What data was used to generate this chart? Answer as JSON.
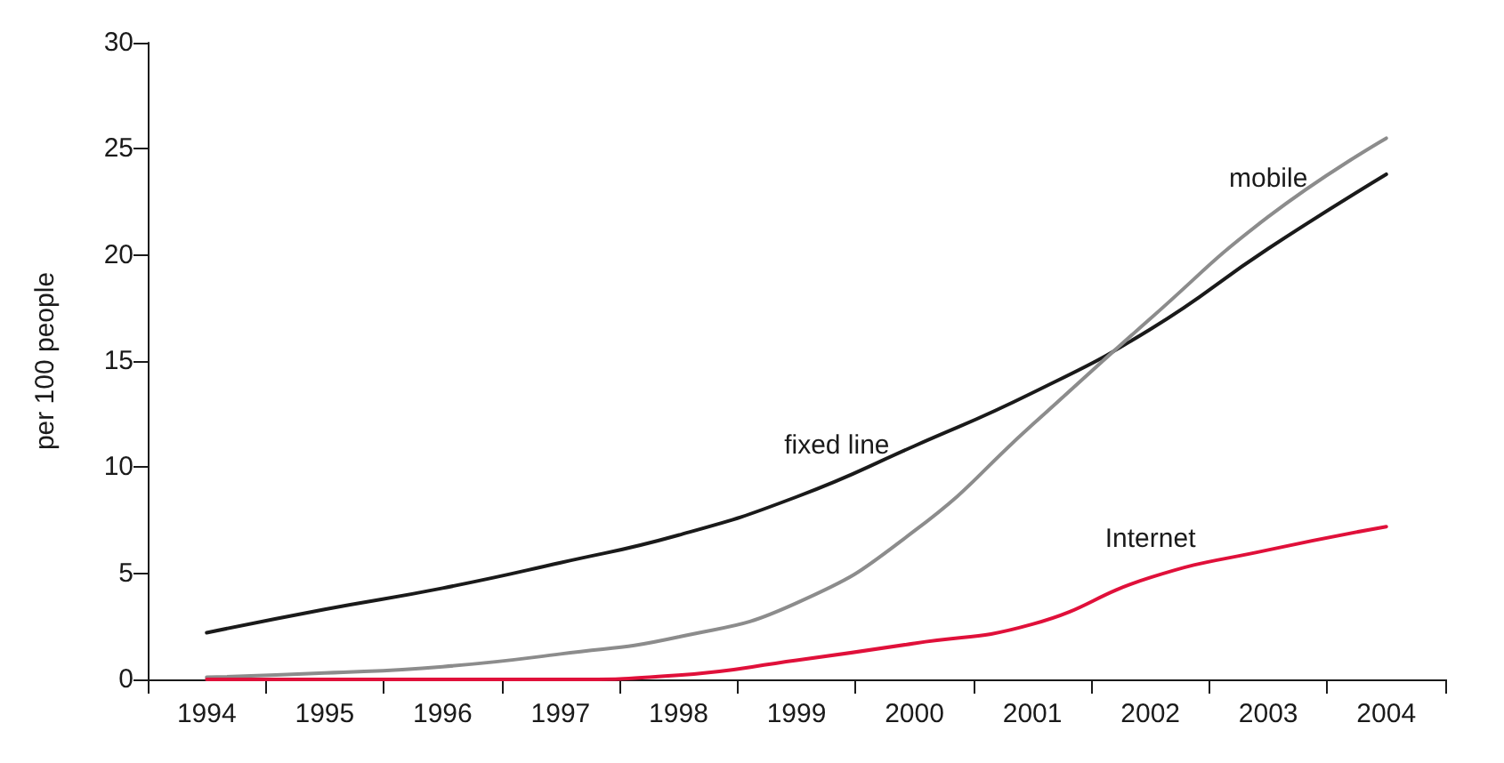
{
  "chart_data": {
    "type": "line",
    "ylabel": "per 100 people",
    "categories": [
      "1994",
      "1995",
      "1996",
      "1997",
      "1998",
      "1999",
      "2000",
      "2001",
      "2002",
      "2003",
      "2004"
    ],
    "series": [
      {
        "name": "fixed line",
        "color": "#1a1a1a",
        "values": [
          2.2,
          3.3,
          4.3,
          5.5,
          6.8,
          8.6,
          11.0,
          13.5,
          16.5,
          20.3,
          23.8
        ]
      },
      {
        "name": "mobile",
        "color": "#8c8c8c",
        "values": [
          0.1,
          0.3,
          0.6,
          1.2,
          2.0,
          3.6,
          7.0,
          12.0,
          17.0,
          21.8,
          25.5
        ]
      },
      {
        "name": "Internet",
        "color": "#e0103a",
        "values": [
          0,
          0,
          0,
          0,
          0.2,
          0.9,
          1.7,
          2.6,
          4.8,
          6.1,
          7.2
        ]
      }
    ],
    "ylim": [
      0,
      30
    ],
    "yticks": [
      0,
      5,
      10,
      15,
      20,
      25,
      30
    ],
    "grid": false,
    "legend": false,
    "marker": "none",
    "line_style": "solid"
  }
}
